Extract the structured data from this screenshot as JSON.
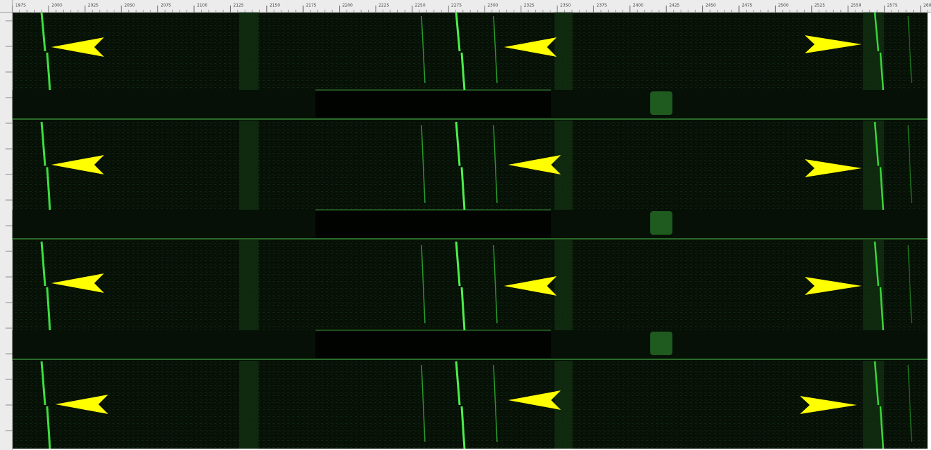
{
  "ruler": {
    "labels": [
      "1975",
      "2000",
      "2025",
      "2050",
      "2075",
      "2100",
      "2125",
      "2150",
      "2175",
      "2200",
      "2225",
      "2250",
      "2275",
      "2300",
      "2325",
      "2350",
      "2375",
      "2400",
      "2425",
      "2450",
      "2475",
      "2500",
      "2525",
      "2550",
      "2575",
      "2600"
    ]
  }
}
